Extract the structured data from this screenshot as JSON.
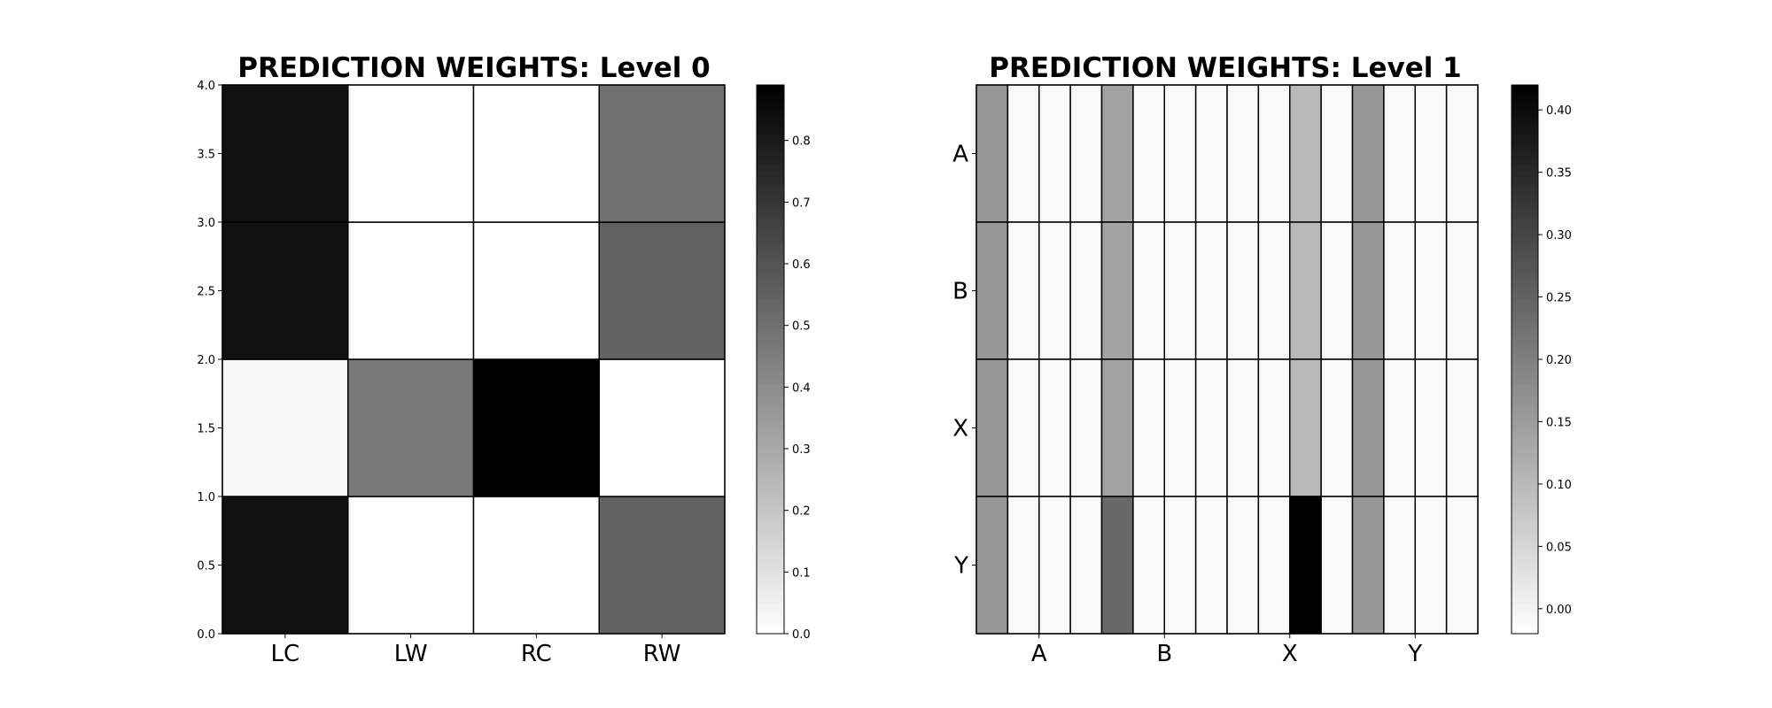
{
  "chart_data": [
    {
      "type": "heatmap",
      "title": "PREDICTION WEIGHTS: Level 0",
      "colormap": "grayscale, white = low, black = high",
      "x_categories": [
        "LC",
        "LW",
        "RC",
        "RW"
      ],
      "y_range": [
        0.0,
        4.0
      ],
      "y_ticks": [
        "0.0",
        "0.5",
        "1.0",
        "1.5",
        "2.0",
        "2.5",
        "3.0",
        "3.5",
        "4.0"
      ],
      "rows_bottom_to_top": [
        [
          0.83,
          0.0,
          0.0,
          0.55
        ],
        [
          0.03,
          0.47,
          0.89,
          0.0
        ],
        [
          0.83,
          0.0,
          0.0,
          0.55
        ],
        [
          0.83,
          0.0,
          0.0,
          0.5
        ]
      ],
      "colorbar": {
        "range": [
          0.0,
          0.89
        ],
        "ticks": [
          "0.0",
          "0.1",
          "0.2",
          "0.3",
          "0.4",
          "0.5",
          "0.6",
          "0.7",
          "0.8"
        ],
        "tick_values": [
          0.0,
          0.1,
          0.2,
          0.3,
          0.4,
          0.5,
          0.6,
          0.7,
          0.8
        ]
      }
    },
    {
      "type": "heatmap",
      "title": "PREDICTION WEIGHTS: Level 1",
      "colormap": "grayscale, white = low, black = high",
      "x_group_labels": [
        "A",
        "B",
        "X",
        "Y"
      ],
      "columns_per_row": 16,
      "y_categories_top_to_bottom": [
        "A",
        "B",
        "X",
        "Y"
      ],
      "rows_top_to_bottom": [
        [
          0.16,
          -0.01,
          -0.01,
          -0.01,
          0.14,
          -0.01,
          -0.01,
          -0.01,
          -0.01,
          -0.01,
          0.1,
          -0.01,
          0.16,
          -0.01,
          -0.01,
          -0.01
        ],
        [
          0.16,
          -0.01,
          -0.01,
          -0.01,
          0.14,
          -0.01,
          -0.01,
          -0.01,
          -0.01,
          -0.01,
          0.1,
          -0.01,
          0.16,
          -0.01,
          -0.01,
          -0.01
        ],
        [
          0.16,
          -0.01,
          -0.01,
          -0.01,
          0.14,
          -0.01,
          -0.01,
          -0.01,
          -0.01,
          -0.01,
          0.1,
          -0.01,
          0.16,
          -0.01,
          -0.01,
          -0.01
        ],
        [
          0.16,
          -0.01,
          -0.01,
          -0.01,
          0.24,
          -0.01,
          -0.01,
          -0.01,
          -0.01,
          -0.01,
          0.42,
          -0.01,
          0.16,
          -0.01,
          -0.01,
          -0.01
        ]
      ],
      "colorbar": {
        "range": [
          -0.02,
          0.42
        ],
        "ticks": [
          "0.00",
          "0.05",
          "0.10",
          "0.15",
          "0.20",
          "0.25",
          "0.30",
          "0.35",
          "0.40"
        ],
        "tick_values": [
          0.0,
          0.05,
          0.1,
          0.15,
          0.2,
          0.25,
          0.3,
          0.35,
          0.4
        ]
      }
    }
  ]
}
